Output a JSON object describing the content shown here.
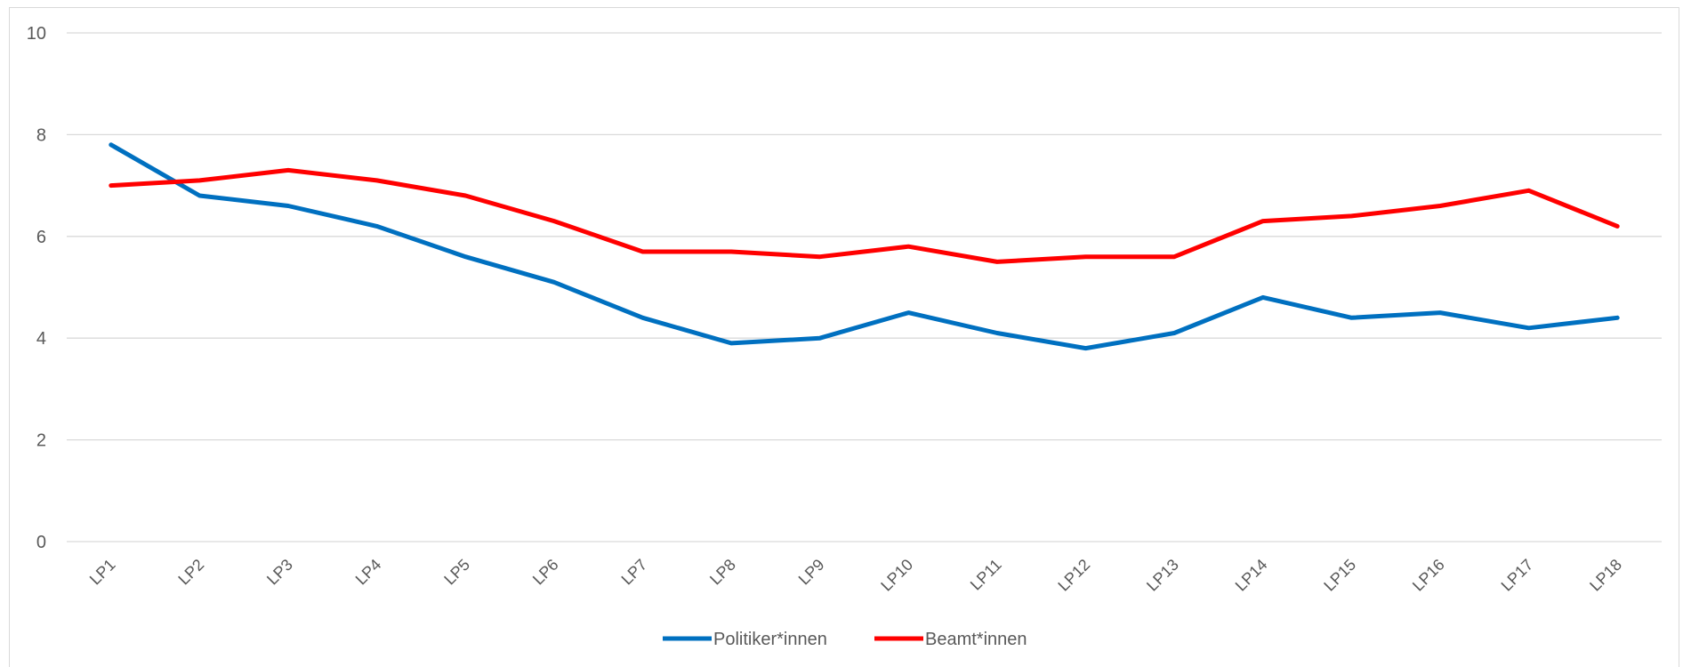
{
  "chart_data": {
    "type": "line",
    "title": "",
    "xlabel": "",
    "ylabel": "",
    "categories": [
      "LP1",
      "LP2",
      "LP3",
      "LP4",
      "LP5",
      "LP6",
      "LP7",
      "LP8",
      "LP9",
      "LP10",
      "LP11",
      "LP12",
      "LP13",
      "LP14",
      "LP15",
      "LP16",
      "LP17",
      "LP18"
    ],
    "yticks": [
      0,
      2,
      4,
      6,
      8,
      10
    ],
    "ylim": [
      0,
      10
    ],
    "grid": true,
    "legend_position": "bottom",
    "series": [
      {
        "name": "Politiker*innen",
        "color": "#0070C0",
        "values": [
          7.8,
          6.8,
          6.6,
          6.2,
          5.6,
          5.1,
          4.4,
          3.9,
          4.0,
          4.5,
          4.1,
          3.8,
          4.1,
          4.8,
          4.4,
          4.5,
          4.2,
          4.4
        ]
      },
      {
        "name": "Beamt*innen",
        "color": "#FF0000",
        "values": [
          7.0,
          7.1,
          7.3,
          7.1,
          6.8,
          6.3,
          5.7,
          5.7,
          5.6,
          5.8,
          5.5,
          5.6,
          5.6,
          6.3,
          6.4,
          6.6,
          6.9,
          6.2
        ]
      }
    ]
  }
}
